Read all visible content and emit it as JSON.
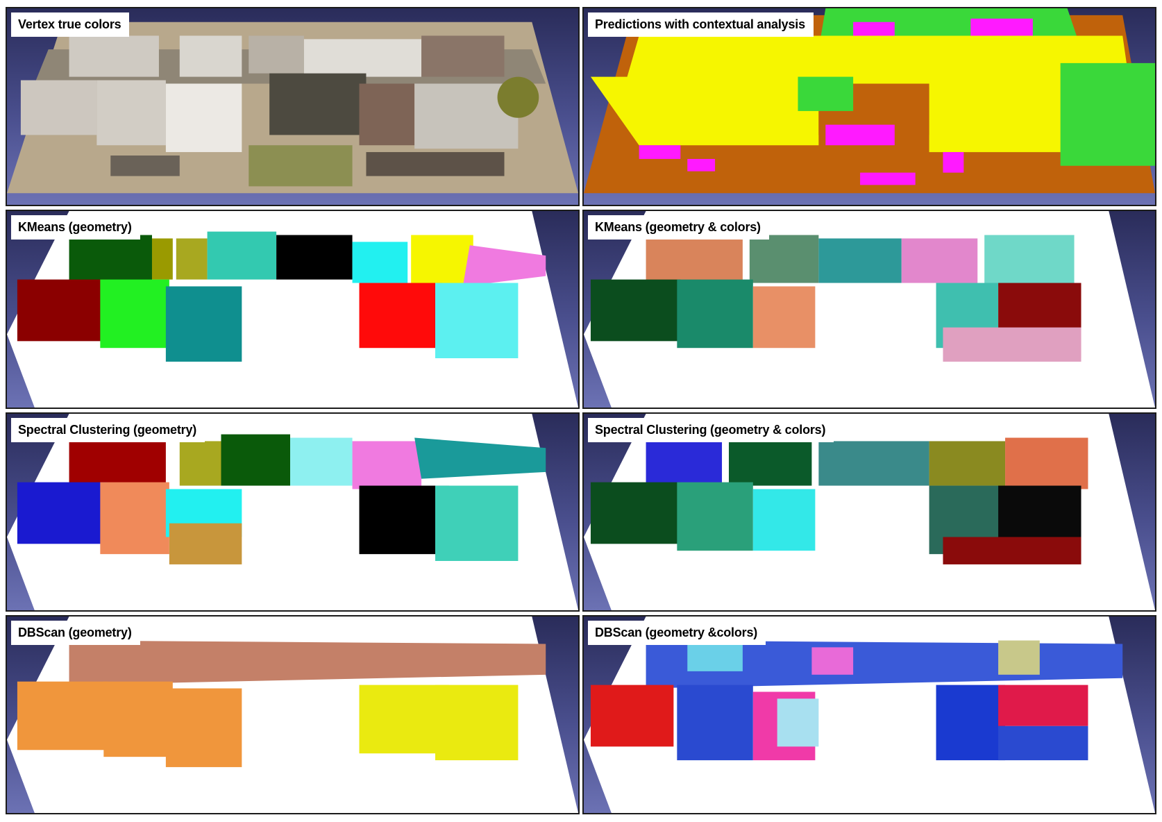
{
  "panels": [
    {
      "label": "Vertex true colors",
      "scheme": "photo"
    },
    {
      "label": "Predictions with contextual analysis",
      "scheme": "semantic"
    },
    {
      "label": "KMeans (geometry)",
      "scheme": "kmeans-geo"
    },
    {
      "label": "KMeans (geometry & colors)",
      "scheme": "kmeans-geocol"
    },
    {
      "label": "Spectral Clustering (geometry)",
      "scheme": "spectral-geo"
    },
    {
      "label": "Spectral Clustering (geometry & colors)",
      "scheme": "spectral-geocol"
    },
    {
      "label": "DBScan (geometry)",
      "scheme": "dbscan-geo"
    },
    {
      "label": "DBScan (geometry &colors)",
      "scheme": "dbscan-geocol"
    }
  ],
  "colors": {
    "background_top": "#2a2c5a",
    "background_bottom": "#6c72b4",
    "ground_white": "#ffffff"
  }
}
